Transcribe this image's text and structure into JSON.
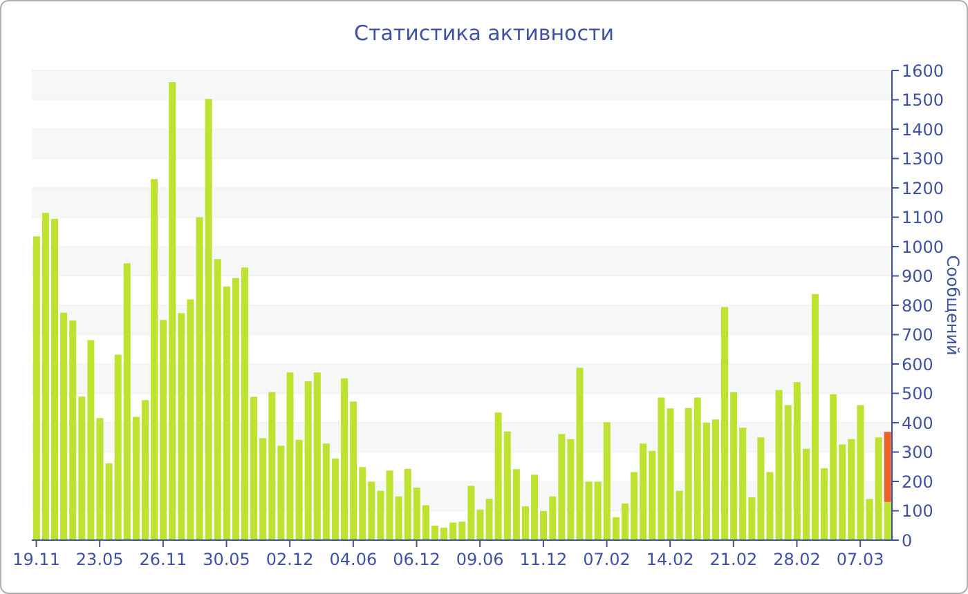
{
  "chart_data": {
    "type": "bar",
    "title": "Статистика активности",
    "ylabel": "Сообщений",
    "categories": [
      "19.11",
      null,
      null,
      null,
      null,
      null,
      null,
      "23.05",
      null,
      null,
      null,
      null,
      null,
      null,
      "26.11",
      null,
      null,
      null,
      null,
      null,
      null,
      "30.05",
      null,
      null,
      null,
      null,
      null,
      null,
      "02.12",
      null,
      null,
      null,
      null,
      null,
      null,
      "04.06",
      null,
      null,
      null,
      null,
      null,
      null,
      "06.12",
      null,
      null,
      null,
      null,
      null,
      null,
      "09.06",
      null,
      null,
      null,
      null,
      null,
      null,
      "11.12",
      null,
      null,
      null,
      null,
      null,
      null,
      "07.02",
      null,
      null,
      null,
      null,
      null,
      null,
      "14.02",
      null,
      null,
      null,
      null,
      null,
      null,
      "21.02",
      null,
      null,
      null,
      null,
      null,
      null,
      "28.02",
      null,
      null,
      null,
      null,
      null,
      null,
      "07.03",
      null,
      null,
      null
    ],
    "series": [
      {
        "color": "#bde22f",
        "values": [
          1035,
          1115,
          1095,
          775,
          748,
          489,
          681,
          416,
          262,
          632,
          943,
          420,
          477,
          1230,
          750,
          1560,
          773,
          820,
          1100,
          1503,
          957,
          864,
          893,
          929,
          488,
          347,
          504,
          322,
          571,
          342,
          541,
          571,
          329,
          278,
          551,
          472,
          249,
          199,
          168,
          237,
          149,
          243,
          179,
          119,
          49,
          42,
          60,
          63,
          185,
          104,
          141,
          435,
          370,
          242,
          115,
          223,
          99,
          149,
          361,
          344,
          587,
          199,
          199,
          402,
          78,
          125,
          232,
          329,
          304,
          486,
          449,
          168,
          450,
          486,
          400,
          411,
          794,
          504,
          383,
          146,
          350,
          232,
          511,
          460,
          538,
          311,
          838,
          245,
          497,
          326,
          344,
          460,
          140,
          350,
          130
        ]
      },
      {
        "color": "#e8622a",
        "values": [
          null,
          null,
          null,
          null,
          null,
          null,
          null,
          null,
          null,
          null,
          null,
          null,
          null,
          null,
          null,
          null,
          null,
          null,
          null,
          null,
          null,
          null,
          null,
          null,
          null,
          null,
          null,
          null,
          null,
          null,
          null,
          null,
          null,
          null,
          null,
          null,
          null,
          null,
          null,
          null,
          null,
          null,
          null,
          null,
          null,
          null,
          null,
          null,
          null,
          null,
          null,
          null,
          null,
          null,
          null,
          null,
          null,
          null,
          null,
          null,
          null,
          null,
          null,
          null,
          null,
          null,
          null,
          null,
          null,
          null,
          null,
          null,
          null,
          null,
          null,
          null,
          null,
          null,
          null,
          null,
          null,
          null,
          null,
          null,
          null,
          null,
          null,
          null,
          null,
          null,
          null,
          null,
          null,
          null,
          239
        ]
      }
    ],
    "stacked": true,
    "ylim": [
      0,
      1600
    ],
    "yticks": [
      0,
      100,
      200,
      300,
      400,
      500,
      600,
      700,
      800,
      900,
      1000,
      1100,
      1200,
      1300,
      1400,
      1500,
      1600
    ],
    "grid": "y"
  }
}
